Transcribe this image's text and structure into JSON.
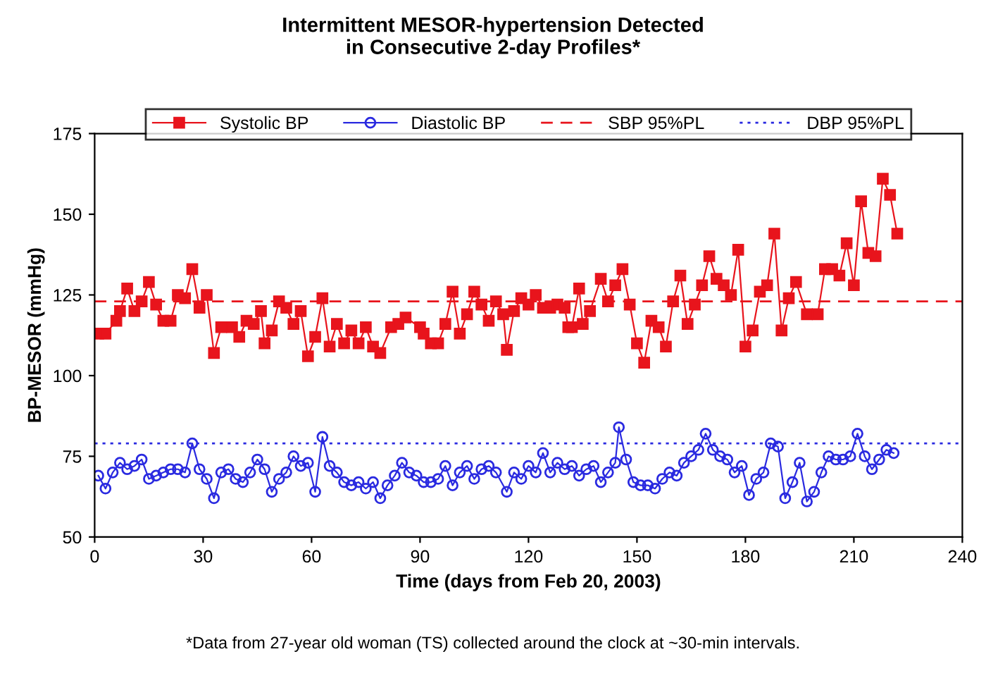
{
  "chart_data": {
    "type": "line",
    "title": "Intermittent MESOR-hypertension Detected\nin Consecutive 2-day Profiles*",
    "xlabel": "Time (days from Feb 20, 2003)",
    "ylabel": "BP-MESOR (mmHg)",
    "annotations": [
      "*Data from 27-year old woman (TS) collected around the clock at ~30-min intervals."
    ],
    "xlim": [
      0,
      240
    ],
    "xticks": [
      0,
      30,
      60,
      90,
      120,
      150,
      180,
      210,
      240
    ],
    "ylim": [
      50,
      175
    ],
    "yticks": [
      50,
      75,
      100,
      125,
      150,
      175
    ],
    "grid": false,
    "legend": "top",
    "series": [
      {
        "name": "Systolic BP",
        "color": "#e8141c",
        "marker": "square",
        "line_style": "solid",
        "x": [
          1,
          3,
          6,
          7,
          9,
          11,
          13,
          15,
          17,
          19,
          21,
          23,
          25,
          27,
          29,
          31,
          33,
          35,
          38,
          40,
          42,
          44,
          46,
          47,
          49,
          51,
          53,
          55,
          57,
          59,
          61,
          63,
          65,
          67,
          69,
          71,
          73,
          75,
          77,
          79,
          82,
          84,
          86,
          90,
          91,
          93,
          95,
          97,
          99,
          101,
          103,
          105,
          107,
          109,
          111,
          113,
          114,
          116,
          118,
          120,
          122,
          124,
          126,
          128,
          130,
          131,
          132,
          134,
          135,
          137,
          140,
          142,
          144,
          146,
          148,
          150,
          152,
          154,
          156,
          158,
          160,
          162,
          164,
          166,
          168,
          170,
          172,
          174,
          176,
          178,
          180,
          182,
          184,
          186,
          188,
          190,
          192,
          194,
          197,
          200,
          202,
          204,
          206,
          208,
          210,
          212,
          214,
          216,
          218,
          220,
          222
        ],
        "values": [
          113,
          113,
          117,
          120,
          127,
          120,
          123,
          129,
          122,
          117,
          117,
          125,
          124,
          133,
          121,
          125,
          107,
          115,
          115,
          112,
          117,
          116,
          120,
          110,
          114,
          123,
          121,
          116,
          120,
          106,
          112,
          124,
          109,
          116,
          110,
          114,
          110,
          115,
          109,
          107,
          115,
          116,
          118,
          115,
          113,
          110,
          110,
          116,
          126,
          113,
          119,
          126,
          122,
          117,
          123,
          119,
          108,
          120,
          124,
          122,
          125,
          121,
          121,
          122,
          121,
          115,
          115,
          127,
          116,
          120,
          130,
          123,
          128,
          133,
          122,
          110,
          104,
          117,
          115,
          109,
          123,
          131,
          116,
          122,
          128,
          137,
          130,
          128,
          125,
          139,
          109,
          114,
          126,
          128,
          144,
          114,
          124,
          129,
          119,
          119,
          133,
          133,
          131,
          141,
          128,
          154,
          138,
          137,
          161,
          156,
          144
        ]
      },
      {
        "name": "Diastolic BP",
        "color": "#2a2ae0",
        "marker": "circle",
        "line_style": "solid",
        "x": [
          1,
          3,
          5,
          7,
          9,
          11,
          13,
          15,
          17,
          19,
          21,
          23,
          25,
          27,
          29,
          31,
          33,
          35,
          37,
          39,
          41,
          43,
          45,
          47,
          49,
          51,
          53,
          55,
          57,
          59,
          61,
          63,
          65,
          67,
          69,
          71,
          73,
          75,
          77,
          79,
          81,
          83,
          85,
          87,
          89,
          91,
          93,
          95,
          97,
          99,
          101,
          103,
          105,
          107,
          109,
          111,
          114,
          116,
          118,
          120,
          122,
          124,
          126,
          128,
          130,
          132,
          134,
          136,
          138,
          140,
          142,
          144,
          145,
          147,
          149,
          151,
          153,
          155,
          157,
          159,
          161,
          163,
          165,
          167,
          169,
          171,
          173,
          175,
          177,
          179,
          181,
          183,
          185,
          187,
          189,
          191,
          193,
          195,
          197,
          199,
          201,
          203,
          205,
          207,
          209,
          211,
          213,
          215,
          217,
          219,
          221
        ],
        "values": [
          69,
          65,
          70,
          73,
          71,
          72,
          74,
          68,
          69,
          70,
          71,
          71,
          70,
          79,
          71,
          68,
          62,
          70,
          71,
          68,
          67,
          70,
          74,
          71,
          64,
          68,
          70,
          75,
          72,
          73,
          64,
          81,
          72,
          70,
          67,
          66,
          67,
          65,
          67,
          62,
          66,
          69,
          73,
          70,
          69,
          67,
          67,
          68,
          72,
          66,
          70,
          72,
          68,
          71,
          72,
          70,
          64,
          70,
          68,
          72,
          70,
          76,
          70,
          73,
          71,
          72,
          69,
          71,
          72,
          67,
          70,
          73,
          84,
          74,
          67,
          66,
          66,
          65,
          68,
          70,
          69,
          73,
          75,
          77,
          82,
          77,
          75,
          74,
          70,
          72,
          63,
          68,
          70,
          79,
          78,
          62,
          67,
          73,
          61,
          64,
          70,
          75,
          74,
          74,
          75,
          82,
          75,
          71,
          74,
          77,
          76
        ]
      }
    ],
    "ref_lines": [
      {
        "axis": "y",
        "value": 123,
        "label": "SBP 95%PL",
        "color": "#e8141c",
        "line_style": "dashed"
      },
      {
        "axis": "y",
        "value": 79,
        "label": "DBP 95%PL",
        "color": "#2a2ae0",
        "line_style": "dotted"
      }
    ]
  }
}
